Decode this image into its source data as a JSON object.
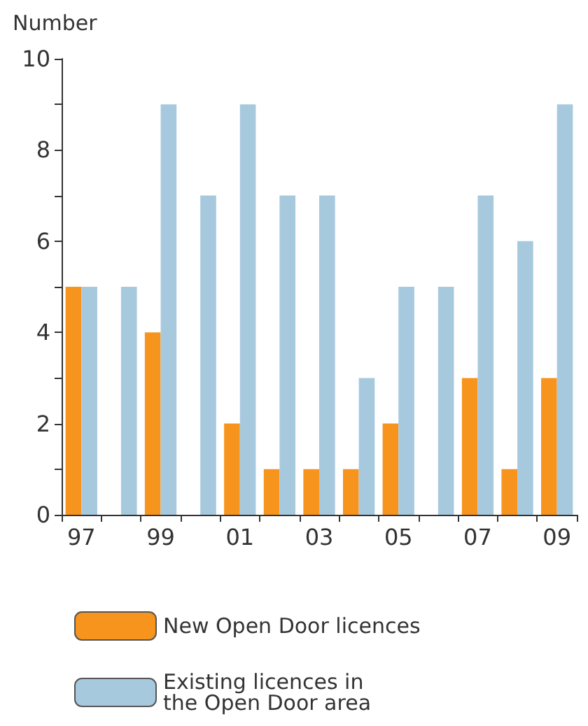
{
  "chart_data": {
    "type": "bar",
    "ylabel": "Number",
    "categories": [
      "97",
      null,
      "99",
      null,
      "01",
      null,
      "03",
      null,
      "05",
      null,
      "07",
      null,
      "09"
    ],
    "series": [
      {
        "name": "New Open Door licences",
        "color": "#f7941d",
        "values": [
          5,
          0,
          4,
          0,
          2,
          1,
          1,
          1,
          2,
          0,
          3,
          1,
          3
        ]
      },
      {
        "name": "Existing licences in\nthe Open Door area",
        "color": "#a7c9de",
        "values": [
          5,
          5,
          9,
          7,
          9,
          7,
          7,
          3,
          5,
          5,
          7,
          6,
          9
        ]
      }
    ],
    "ylim": [
      0,
      10
    ],
    "yticks": [
      0,
      {
        "value": 1,
        "label": null
      },
      2,
      {
        "value": 3,
        "label": null
      },
      4,
      {
        "value": 5,
        "label": null
      },
      6,
      {
        "value": 7,
        "label": null
      },
      8,
      {
        "value": 9,
        "label": null
      },
      10
    ],
    "grid": false,
    "legend": "bottom"
  }
}
